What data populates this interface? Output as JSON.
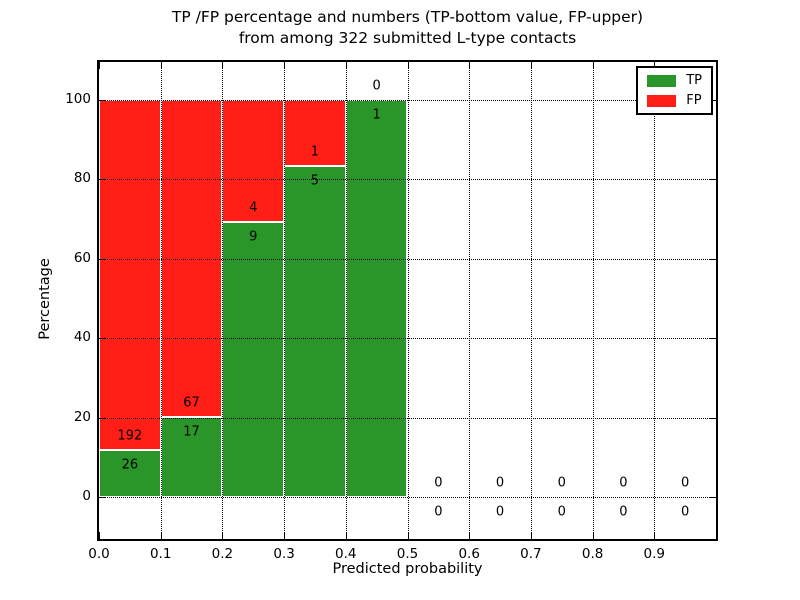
{
  "chart_data": {
    "type": "bar",
    "variant": "stacked-100-percent-histogram",
    "title_lines": [
      "TP /FP percentage and numbers (TP-bottom value, FP-upper)",
      "from among 322 submitted L-type contacts"
    ],
    "title": "TP /FP percentage and numbers (TP-bottom value, FP-upper)\nfrom among 322 submitted L-type contacts",
    "xlabel": "Predicted probability",
    "ylabel": "Percentage",
    "xlim": [
      0.0,
      1.0
    ],
    "ylim": [
      -11,
      110
    ],
    "x_ticks": [
      0.0,
      0.1,
      0.2,
      0.3,
      0.4,
      0.5,
      0.6,
      0.7,
      0.8,
      0.9
    ],
    "x_tick_labels": [
      "0.0",
      "0.1",
      "0.2",
      "0.3",
      "0.4",
      "0.5",
      "0.6",
      "0.7",
      "0.8",
      "0.9"
    ],
    "y_ticks": [
      0,
      20,
      40,
      60,
      80,
      100
    ],
    "y_tick_labels": [
      "0",
      "20",
      "40",
      "60",
      "80",
      "100"
    ],
    "grid": "dotted-both-axes-drawn-over-bars",
    "colors": {
      "tp": "#2a9528",
      "fp": "#fe1e16",
      "axis": "#000000",
      "background": "#ffffff"
    },
    "legend": {
      "position": "upper-right",
      "items": [
        {
          "label": "TP",
          "color": "#2a9528"
        },
        {
          "label": "FP",
          "color": "#fe1e16"
        }
      ]
    },
    "bins": [
      {
        "x0": 0.0,
        "x1": 0.1,
        "tp": 26,
        "fp": 192
      },
      {
        "x0": 0.1,
        "x1": 0.2,
        "tp": 17,
        "fp": 67
      },
      {
        "x0": 0.2,
        "x1": 0.3,
        "tp": 9,
        "fp": 4
      },
      {
        "x0": 0.3,
        "x1": 0.4,
        "tp": 5,
        "fp": 1
      },
      {
        "x0": 0.4,
        "x1": 0.5,
        "tp": 1,
        "fp": 0
      },
      {
        "x0": 0.5,
        "x1": 0.6,
        "tp": 0,
        "fp": 0
      },
      {
        "x0": 0.6,
        "x1": 0.7,
        "tp": 0,
        "fp": 0
      },
      {
        "x0": 0.7,
        "x1": 0.8,
        "tp": 0,
        "fp": 0
      },
      {
        "x0": 0.8,
        "x1": 0.9,
        "tp": 0,
        "fp": 0
      },
      {
        "x0": 0.9,
        "x1": 1.0,
        "tp": 0,
        "fp": 0
      }
    ]
  }
}
